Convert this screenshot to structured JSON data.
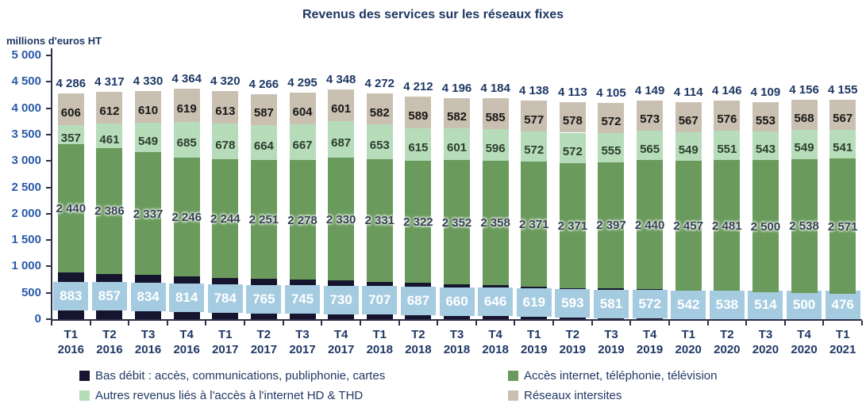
{
  "chart_data": {
    "type": "bar",
    "stacked": true,
    "title": "Revenus des services sur les réseaux fixes",
    "xlabel": "",
    "ylabel": "millions d'euros HT",
    "ylim": [
      0,
      5000
    ],
    "grid": false,
    "legend_position": "bottom",
    "ytick_values": [
      0,
      500,
      1000,
      1500,
      2000,
      2500,
      3000,
      3500,
      4000,
      4500,
      5000
    ],
    "ytick_labels": [
      "0",
      "500",
      "1 000",
      "1 500",
      "2 000",
      "2 500",
      "3 000",
      "3 500",
      "4 000",
      "4 500",
      "5 000"
    ],
    "categories": [
      {
        "quarter": "T1",
        "year": "2016"
      },
      {
        "quarter": "T2",
        "year": "2016"
      },
      {
        "quarter": "T3",
        "year": "2016"
      },
      {
        "quarter": "T4",
        "year": "2016"
      },
      {
        "quarter": "T1",
        "year": "2017"
      },
      {
        "quarter": "T2",
        "year": "2017"
      },
      {
        "quarter": "T3",
        "year": "2017"
      },
      {
        "quarter": "T4",
        "year": "2017"
      },
      {
        "quarter": "T1",
        "year": "2018"
      },
      {
        "quarter": "T2",
        "year": "2018"
      },
      {
        "quarter": "T3",
        "year": "2018"
      },
      {
        "quarter": "T4",
        "year": "2018"
      },
      {
        "quarter": "T1",
        "year": "2019"
      },
      {
        "quarter": "T2",
        "year": "2019"
      },
      {
        "quarter": "T3",
        "year": "2019"
      },
      {
        "quarter": "T4",
        "year": "2019"
      },
      {
        "quarter": "T1",
        "year": "2020"
      },
      {
        "quarter": "T2",
        "year": "2020"
      },
      {
        "quarter": "T3",
        "year": "2020"
      },
      {
        "quarter": "T4",
        "year": "2020"
      },
      {
        "quarter": "T1",
        "year": "2021"
      }
    ],
    "series": [
      {
        "name": "Bas débit : accès, communications, publiphonie, cartes",
        "color": "#16152f",
        "label_style": "box",
        "label_box_color": "#a5cbe1",
        "label_text_color": "#ffffff",
        "values": [
          883,
          857,
          834,
          814,
          784,
          765,
          745,
          730,
          707,
          687,
          660,
          646,
          619,
          593,
          581,
          572,
          542,
          538,
          514,
          500,
          476
        ]
      },
      {
        "name": "Accès internet, téléphonie, télévision",
        "color": "#6a9b5d",
        "label_style": "halo",
        "label_text_color": "#364152",
        "values": [
          2440,
          2386,
          2337,
          2246,
          2244,
          2251,
          2278,
          2330,
          2331,
          2322,
          2352,
          2358,
          2371,
          2371,
          2397,
          2440,
          2457,
          2481,
          2500,
          2538,
          2571
        ]
      },
      {
        "name": "Autres revenus liés à l'accès à l'internet HD & THD",
        "color": "#b7dcba",
        "label_style": "plain",
        "label_text_color": "#2c3e2e",
        "values": [
          357,
          461,
          549,
          685,
          678,
          664,
          667,
          687,
          653,
          615,
          601,
          596,
          572,
          572,
          555,
          565,
          549,
          551,
          543,
          549,
          541
        ]
      },
      {
        "name": "Réseaux intersites",
        "color": "#c9c0b1",
        "label_style": "plain",
        "label_text_color": "#191919",
        "values": [
          606,
          612,
          610,
          619,
          613,
          587,
          604,
          601,
          582,
          589,
          582,
          585,
          577,
          578,
          572,
          573,
          567,
          576,
          553,
          568,
          567
        ]
      }
    ],
    "totals": [
      4286,
      4317,
      4330,
      4364,
      4320,
      4266,
      4295,
      4348,
      4272,
      4212,
      4196,
      4184,
      4138,
      4113,
      4105,
      4149,
      4114,
      4146,
      4109,
      4156,
      4155
    ],
    "totals_color": "#1f3864"
  }
}
